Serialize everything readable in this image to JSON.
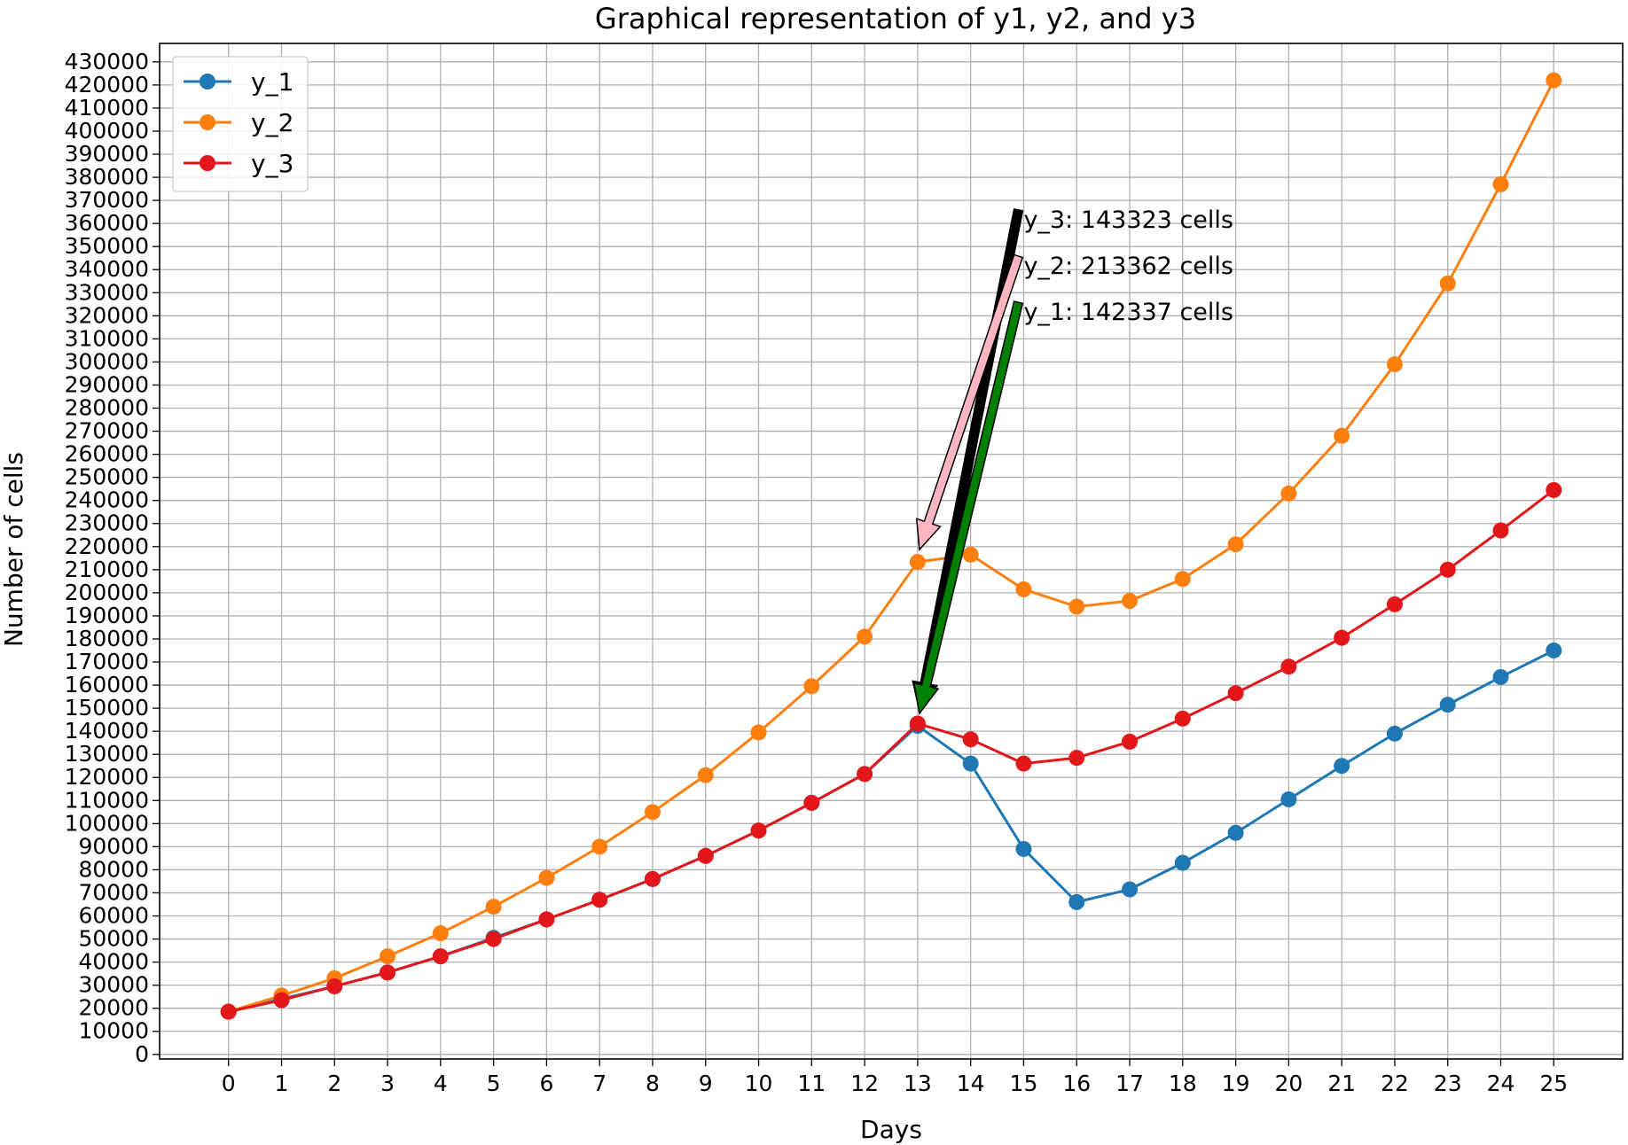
{
  "chart_data": {
    "type": "line",
    "title": "Graphical representation of y1, y2, and y3",
    "xlabel": "Days",
    "ylabel": "Number of cells",
    "x": [
      0,
      1,
      2,
      3,
      4,
      5,
      6,
      7,
      8,
      9,
      10,
      11,
      12,
      13,
      14,
      15,
      16,
      17,
      18,
      19,
      20,
      21,
      22,
      23,
      24,
      25
    ],
    "xlim": [
      -1.3,
      26.3
    ],
    "ylim": [
      -2000,
      438000
    ],
    "y_ticks": [
      0,
      10000,
      20000,
      30000,
      40000,
      50000,
      60000,
      70000,
      80000,
      90000,
      100000,
      110000,
      120000,
      130000,
      140000,
      150000,
      160000,
      170000,
      180000,
      190000,
      200000,
      210000,
      220000,
      230000,
      240000,
      250000,
      260000,
      270000,
      280000,
      290000,
      300000,
      310000,
      320000,
      330000,
      340000,
      350000,
      360000,
      370000,
      380000,
      390000,
      400000,
      410000,
      420000,
      430000
    ],
    "grid": true,
    "legend_position": "top-left",
    "series": [
      {
        "name": "y_1",
        "color": "#1f77b4",
        "marker": "circle",
        "values": [
          18500,
          24000,
          29500,
          35500,
          42500,
          50500,
          58500,
          67000,
          76000,
          86000,
          97000,
          109000,
          121500,
          142337,
          126000,
          89000,
          66000,
          71500,
          83000,
          96000,
          110500,
          125000,
          139000,
          151500,
          163500,
          175000
        ]
      },
      {
        "name": "y_2",
        "color": "#ff7f0e",
        "marker": "circle",
        "values": [
          18500,
          25500,
          33000,
          42500,
          52500,
          64000,
          76500,
          90000,
          105000,
          121000,
          139500,
          159500,
          181000,
          213362,
          216500,
          201500,
          194000,
          196500,
          206000,
          221000,
          243000,
          268000,
          299000,
          334000,
          377000,
          422000
        ]
      },
      {
        "name": "y_3",
        "color": "#e3161a",
        "marker": "circle",
        "values": [
          18500,
          23500,
          29500,
          35500,
          42500,
          50000,
          58500,
          67000,
          76000,
          86000,
          97000,
          109000,
          121500,
          143323,
          136500,
          126000,
          128500,
          135500,
          145500,
          156500,
          168000,
          180500,
          195000,
          210000,
          227000,
          244500
        ]
      }
    ],
    "annotations": [
      {
        "text": "y_3: 143323 cells",
        "text_x": 15,
        "text_y": 362000,
        "target_x": 13,
        "target_y": 143323,
        "arrow_color": "#000000"
      },
      {
        "text": "y_2: 213362 cells",
        "text_x": 15,
        "text_y": 342000,
        "target_x": 13,
        "target_y": 213362,
        "arrow_color": "#ffb6c1"
      },
      {
        "text": "y_1: 142337 cells",
        "text_x": 15,
        "text_y": 322000,
        "target_x": 13,
        "target_y": 142337,
        "arrow_color": "#008000"
      }
    ]
  }
}
